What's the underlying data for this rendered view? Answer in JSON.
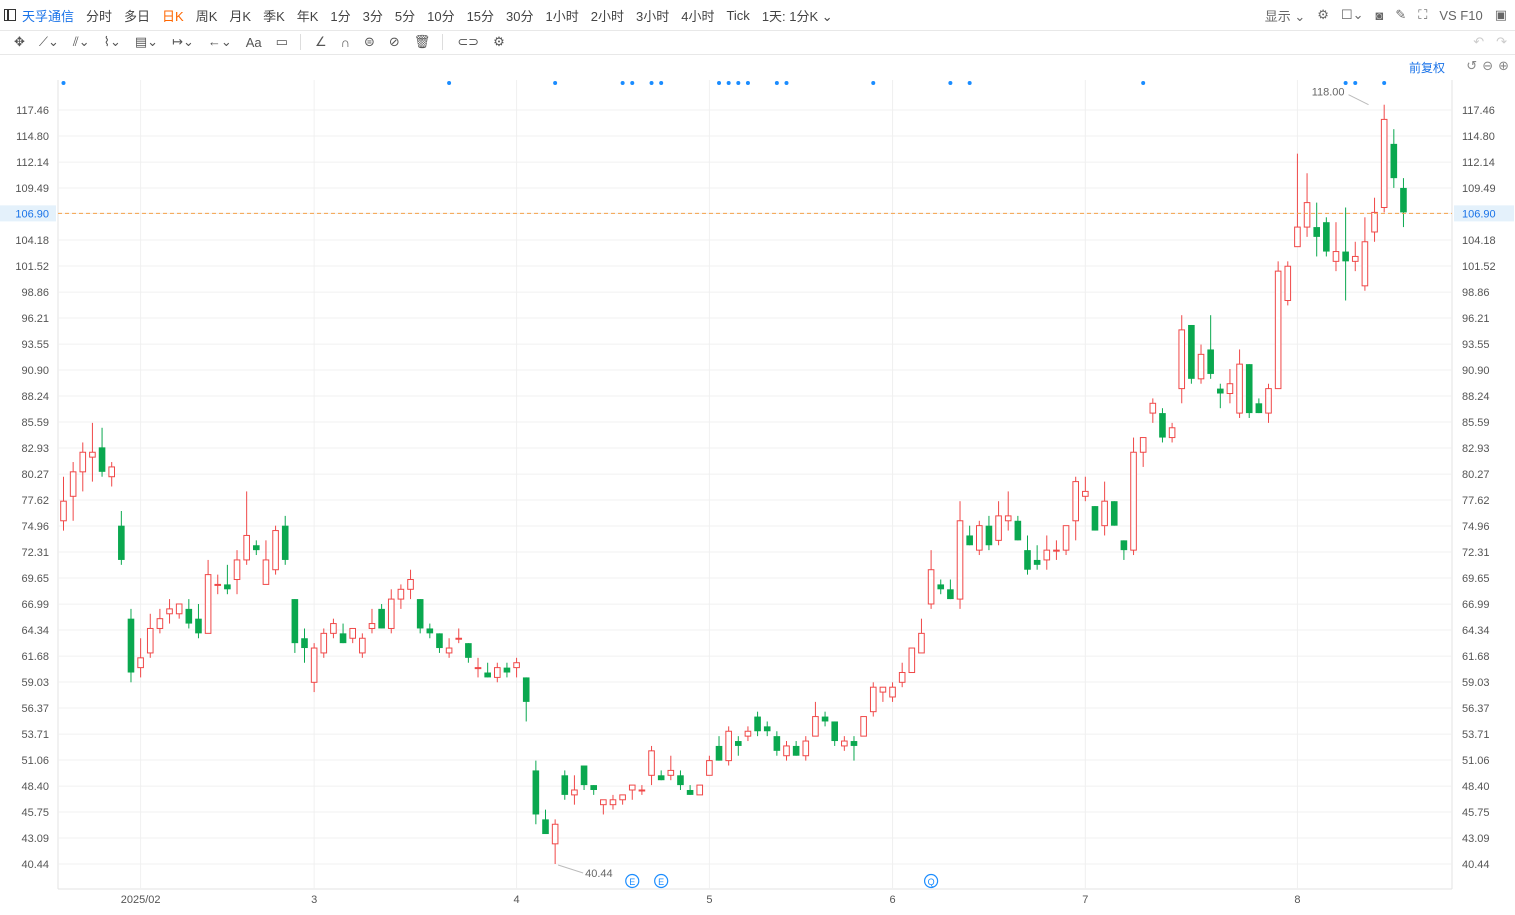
{
  "topbar": {
    "stock_name": "天孚通信",
    "periods": [
      "分时",
      "多日",
      "日K",
      "周K",
      "月K",
      "季K",
      "年K",
      "1分",
      "3分",
      "5分",
      "10分",
      "15分",
      "30分",
      "1小时",
      "2小时",
      "3小时",
      "4小时",
      "Tick",
      "1天: 1分K"
    ],
    "active_period": "日K",
    "display_label": "显示",
    "vs_label": "VS F10"
  },
  "toolbar2": {
    "text_tool_label": "Aa"
  },
  "adjust_label": "前复权",
  "colors": {
    "up": "#f04848",
    "down": "#0aa84f",
    "last_price_line": "#f5a14a",
    "marker": "#1a8cff"
  },
  "chart_data": {
    "type": "candlestick",
    "title": "",
    "ylim": [
      38.5,
      120.5
    ],
    "y_ticks": [
      "117.46",
      "114.80",
      "112.14",
      "109.49",
      "106.90",
      "104.18",
      "101.52",
      "98.86",
      "96.21",
      "93.55",
      "90.90",
      "88.24",
      "85.59",
      "82.93",
      "80.27",
      "77.62",
      "74.96",
      "72.31",
      "69.65",
      "66.99",
      "64.34",
      "61.68",
      "59.03",
      "56.37",
      "53.71",
      "51.06",
      "48.40",
      "45.75",
      "43.09",
      "40.44"
    ],
    "y_tick_values": [
      117.46,
      114.8,
      112.14,
      109.49,
      106.9,
      104.18,
      101.52,
      98.86,
      96.21,
      93.55,
      90.9,
      88.24,
      85.59,
      82.93,
      80.27,
      77.62,
      74.96,
      72.31,
      69.65,
      66.99,
      64.34,
      61.68,
      59.03,
      56.37,
      53.71,
      51.06,
      48.4,
      45.75,
      43.09,
      40.44
    ],
    "x_labels": [
      {
        "label": "2025/02",
        "index": 8
      },
      {
        "label": "3",
        "index": 26
      },
      {
        "label": "4",
        "index": 47
      },
      {
        "label": "5",
        "index": 67
      },
      {
        "label": "6",
        "index": 86
      },
      {
        "label": "7",
        "index": 106
      },
      {
        "label": "8",
        "index": 128
      }
    ],
    "last_price": 106.9,
    "last_price_label": "106.90",
    "max_label": "118.00",
    "max_index": 136,
    "max_value": 118.0,
    "min_label": "40.44",
    "min_index": 51,
    "min_value": 40.44,
    "event_markers": [
      {
        "label": "E",
        "index": 59
      },
      {
        "label": "E",
        "index": 62
      },
      {
        "label": "Q",
        "index": 90
      }
    ],
    "top_dot_indices": [
      0,
      40,
      51,
      58,
      59,
      61,
      62,
      68,
      69,
      70,
      71,
      74,
      75,
      84,
      92,
      94,
      112,
      133,
      134,
      137
    ],
    "candles": [
      {
        "o": 75.5,
        "h": 80.0,
        "l": 74.5,
        "c": 77.5
      },
      {
        "o": 78.0,
        "h": 81.5,
        "l": 75.5,
        "c": 80.5
      },
      {
        "o": 80.5,
        "h": 83.5,
        "l": 78.5,
        "c": 82.5
      },
      {
        "o": 82.0,
        "h": 85.5,
        "l": 79.5,
        "c": 82.5
      },
      {
        "o": 83.0,
        "h": 85.0,
        "l": 80.0,
        "c": 80.5
      },
      {
        "o": 80.0,
        "h": 81.5,
        "l": 79.0,
        "c": 81.0
      },
      {
        "o": 75.0,
        "h": 76.5,
        "l": 71.0,
        "c": 71.5
      },
      {
        "o": 65.5,
        "h": 66.5,
        "l": 59.0,
        "c": 60.0
      },
      {
        "o": 60.5,
        "h": 63.5,
        "l": 59.5,
        "c": 61.5
      },
      {
        "o": 62.0,
        "h": 66.0,
        "l": 61.5,
        "c": 64.5
      },
      {
        "o": 64.5,
        "h": 66.5,
        "l": 64.0,
        "c": 65.5
      },
      {
        "o": 66.0,
        "h": 67.5,
        "l": 65.0,
        "c": 66.5
      },
      {
        "o": 66.0,
        "h": 67.0,
        "l": 65.5,
        "c": 67.0
      },
      {
        "o": 66.5,
        "h": 67.5,
        "l": 64.5,
        "c": 65.0
      },
      {
        "o": 65.5,
        "h": 67.0,
        "l": 63.5,
        "c": 64.0
      },
      {
        "o": 64.0,
        "h": 71.5,
        "l": 64.0,
        "c": 70.0
      },
      {
        "o": 69.0,
        "h": 70.0,
        "l": 68.0,
        "c": 69.0
      },
      {
        "o": 69.0,
        "h": 71.0,
        "l": 68.0,
        "c": 68.5
      },
      {
        "o": 69.5,
        "h": 72.5,
        "l": 68.0,
        "c": 71.5
      },
      {
        "o": 71.5,
        "h": 78.5,
        "l": 71.0,
        "c": 74.0
      },
      {
        "o": 73.0,
        "h": 73.5,
        "l": 72.0,
        "c": 72.5
      },
      {
        "o": 69.0,
        "h": 73.5,
        "l": 69.0,
        "c": 71.5
      },
      {
        "o": 70.5,
        "h": 75.0,
        "l": 70.0,
        "c": 74.5
      },
      {
        "o": 75.0,
        "h": 76.0,
        "l": 71.0,
        "c": 71.5
      },
      {
        "o": 67.5,
        "h": 67.5,
        "l": 62.0,
        "c": 63.0
      },
      {
        "o": 63.5,
        "h": 64.5,
        "l": 61.0,
        "c": 62.5
      },
      {
        "o": 59.0,
        "h": 63.0,
        "l": 58.0,
        "c": 62.5
      },
      {
        "o": 62.0,
        "h": 64.5,
        "l": 61.5,
        "c": 64.0
      },
      {
        "o": 64.0,
        "h": 65.5,
        "l": 63.5,
        "c": 65.0
      },
      {
        "o": 64.0,
        "h": 65.0,
        "l": 63.0,
        "c": 63.0
      },
      {
        "o": 63.5,
        "h": 64.5,
        "l": 63.0,
        "c": 64.5
      },
      {
        "o": 62.0,
        "h": 64.0,
        "l": 61.5,
        "c": 63.5
      },
      {
        "o": 64.5,
        "h": 66.5,
        "l": 64.0,
        "c": 65.0
      },
      {
        "o": 66.5,
        "h": 67.0,
        "l": 64.5,
        "c": 64.5
      },
      {
        "o": 64.5,
        "h": 68.5,
        "l": 64.0,
        "c": 67.5
      },
      {
        "o": 67.5,
        "h": 69.0,
        "l": 66.5,
        "c": 68.5
      },
      {
        "o": 68.5,
        "h": 70.5,
        "l": 67.5,
        "c": 69.5
      },
      {
        "o": 67.5,
        "h": 67.5,
        "l": 64.0,
        "c": 64.5
      },
      {
        "o": 64.5,
        "h": 65.0,
        "l": 63.5,
        "c": 64.0
      },
      {
        "o": 64.0,
        "h": 64.0,
        "l": 62.0,
        "c": 62.5
      },
      {
        "o": 62.0,
        "h": 63.5,
        "l": 61.5,
        "c": 62.5
      },
      {
        "o": 63.5,
        "h": 64.5,
        "l": 63.0,
        "c": 63.5
      },
      {
        "o": 63.0,
        "h": 63.0,
        "l": 61.0,
        "c": 61.5
      },
      {
        "o": 60.5,
        "h": 61.5,
        "l": 59.5,
        "c": 60.5
      },
      {
        "o": 60.0,
        "h": 61.0,
        "l": 59.5,
        "c": 59.5
      },
      {
        "o": 59.5,
        "h": 61.0,
        "l": 59.0,
        "c": 60.5
      },
      {
        "o": 60.5,
        "h": 61.0,
        "l": 59.5,
        "c": 60.0
      },
      {
        "o": 60.5,
        "h": 61.5,
        "l": 59.5,
        "c": 61.0
      },
      {
        "o": 59.5,
        "h": 59.5,
        "l": 55.0,
        "c": 57.0
      },
      {
        "o": 50.0,
        "h": 51.0,
        "l": 44.5,
        "c": 45.5
      },
      {
        "o": 45.0,
        "h": 46.0,
        "l": 43.5,
        "c": 43.5
      },
      {
        "o": 42.5,
        "h": 45.0,
        "l": 40.44,
        "c": 44.5
      },
      {
        "o": 49.5,
        "h": 50.0,
        "l": 47.0,
        "c": 47.5
      },
      {
        "o": 47.5,
        "h": 49.5,
        "l": 46.5,
        "c": 48.0
      },
      {
        "o": 50.5,
        "h": 50.5,
        "l": 48.0,
        "c": 48.5
      },
      {
        "o": 48.5,
        "h": 48.5,
        "l": 47.5,
        "c": 48.0
      },
      {
        "o": 46.5,
        "h": 47.0,
        "l": 45.5,
        "c": 47.0
      },
      {
        "o": 46.5,
        "h": 47.5,
        "l": 46.0,
        "c": 47.0
      },
      {
        "o": 47.0,
        "h": 47.5,
        "l": 46.5,
        "c": 47.5
      },
      {
        "o": 48.0,
        "h": 48.5,
        "l": 47.0,
        "c": 48.5
      },
      {
        "o": 48.0,
        "h": 48.5,
        "l": 47.5,
        "c": 48.0
      },
      {
        "o": 49.5,
        "h": 52.5,
        "l": 48.5,
        "c": 52.0
      },
      {
        "o": 49.5,
        "h": 50.0,
        "l": 49.0,
        "c": 49.0
      },
      {
        "o": 49.5,
        "h": 51.5,
        "l": 49.0,
        "c": 50.0
      },
      {
        "o": 49.5,
        "h": 50.0,
        "l": 48.0,
        "c": 48.5
      },
      {
        "o": 48.0,
        "h": 48.5,
        "l": 47.5,
        "c": 47.5
      },
      {
        "o": 47.5,
        "h": 48.5,
        "l": 47.5,
        "c": 48.5
      },
      {
        "o": 49.5,
        "h": 51.5,
        "l": 49.5,
        "c": 51.0
      },
      {
        "o": 52.5,
        "h": 53.5,
        "l": 51.0,
        "c": 51.0
      },
      {
        "o": 51.0,
        "h": 54.5,
        "l": 50.5,
        "c": 54.0
      },
      {
        "o": 53.0,
        "h": 53.5,
        "l": 51.5,
        "c": 52.5
      },
      {
        "o": 53.5,
        "h": 54.5,
        "l": 53.0,
        "c": 54.0
      },
      {
        "o": 55.5,
        "h": 56.0,
        "l": 53.5,
        "c": 54.0
      },
      {
        "o": 54.5,
        "h": 55.0,
        "l": 53.5,
        "c": 54.0
      },
      {
        "o": 53.5,
        "h": 54.0,
        "l": 51.5,
        "c": 52.0
      },
      {
        "o": 51.5,
        "h": 53.0,
        "l": 51.0,
        "c": 52.5
      },
      {
        "o": 52.5,
        "h": 53.0,
        "l": 51.5,
        "c": 51.5
      },
      {
        "o": 51.5,
        "h": 53.5,
        "l": 51.0,
        "c": 53.0
      },
      {
        "o": 53.5,
        "h": 57.0,
        "l": 53.5,
        "c": 55.5
      },
      {
        "o": 55.5,
        "h": 56.0,
        "l": 54.5,
        "c": 55.0
      },
      {
        "o": 55.0,
        "h": 55.0,
        "l": 52.5,
        "c": 53.0
      },
      {
        "o": 52.5,
        "h": 53.5,
        "l": 52.0,
        "c": 53.0
      },
      {
        "o": 53.0,
        "h": 53.5,
        "l": 51.0,
        "c": 52.5
      },
      {
        "o": 53.5,
        "h": 55.5,
        "l": 53.5,
        "c": 55.5
      },
      {
        "o": 56.0,
        "h": 59.0,
        "l": 55.5,
        "c": 58.5
      },
      {
        "o": 58.0,
        "h": 58.5,
        "l": 57.0,
        "c": 58.5
      },
      {
        "o": 57.5,
        "h": 59.0,
        "l": 57.0,
        "c": 58.5
      },
      {
        "o": 59.0,
        "h": 61.0,
        "l": 58.5,
        "c": 60.0
      },
      {
        "o": 60.0,
        "h": 62.5,
        "l": 60.0,
        "c": 62.5
      },
      {
        "o": 62.0,
        "h": 65.5,
        "l": 62.0,
        "c": 64.0
      },
      {
        "o": 67.0,
        "h": 72.5,
        "l": 66.5,
        "c": 70.5
      },
      {
        "o": 69.0,
        "h": 69.5,
        "l": 68.0,
        "c": 68.5
      },
      {
        "o": 68.5,
        "h": 69.5,
        "l": 67.5,
        "c": 67.5
      },
      {
        "o": 67.5,
        "h": 77.5,
        "l": 66.5,
        "c": 75.5
      },
      {
        "o": 74.0,
        "h": 75.0,
        "l": 73.0,
        "c": 73.0
      },
      {
        "o": 72.5,
        "h": 75.5,
        "l": 72.0,
        "c": 75.0
      },
      {
        "o": 75.0,
        "h": 76.0,
        "l": 72.5,
        "c": 73.0
      },
      {
        "o": 73.5,
        "h": 77.5,
        "l": 73.0,
        "c": 76.0
      },
      {
        "o": 75.5,
        "h": 78.5,
        "l": 74.5,
        "c": 76.0
      },
      {
        "o": 75.5,
        "h": 76.0,
        "l": 73.5,
        "c": 73.5
      },
      {
        "o": 72.5,
        "h": 74.0,
        "l": 70.0,
        "c": 70.5
      },
      {
        "o": 71.5,
        "h": 73.0,
        "l": 70.5,
        "c": 71.0
      },
      {
        "o": 71.5,
        "h": 74.0,
        "l": 70.5,
        "c": 72.5
      },
      {
        "o": 72.5,
        "h": 73.5,
        "l": 71.5,
        "c": 72.5
      },
      {
        "o": 72.5,
        "h": 75.0,
        "l": 72.0,
        "c": 75.0
      },
      {
        "o": 75.5,
        "h": 80.0,
        "l": 73.5,
        "c": 79.5
      },
      {
        "o": 78.0,
        "h": 80.0,
        "l": 77.5,
        "c": 78.5
      },
      {
        "o": 77.0,
        "h": 77.0,
        "l": 74.5,
        "c": 74.5
      },
      {
        "o": 75.0,
        "h": 79.5,
        "l": 74.0,
        "c": 77.5
      },
      {
        "o": 77.5,
        "h": 77.5,
        "l": 75.0,
        "c": 75.0
      },
      {
        "o": 73.5,
        "h": 73.5,
        "l": 71.5,
        "c": 72.5
      },
      {
        "o": 72.5,
        "h": 84.0,
        "l": 72.0,
        "c": 82.5
      },
      {
        "o": 82.5,
        "h": 84.0,
        "l": 81.0,
        "c": 84.0
      },
      {
        "o": 86.5,
        "h": 88.0,
        "l": 85.5,
        "c": 87.5
      },
      {
        "o": 86.5,
        "h": 87.0,
        "l": 83.5,
        "c": 84.0
      },
      {
        "o": 84.0,
        "h": 85.5,
        "l": 83.5,
        "c": 85.0
      },
      {
        "o": 89.0,
        "h": 96.5,
        "l": 87.5,
        "c": 95.0
      },
      {
        "o": 95.5,
        "h": 95.5,
        "l": 89.5,
        "c": 90.0
      },
      {
        "o": 90.0,
        "h": 93.5,
        "l": 89.5,
        "c": 92.5
      },
      {
        "o": 93.0,
        "h": 96.5,
        "l": 90.0,
        "c": 90.5
      },
      {
        "o": 89.0,
        "h": 89.5,
        "l": 87.0,
        "c": 88.5
      },
      {
        "o": 88.5,
        "h": 91.0,
        "l": 87.5,
        "c": 89.5
      },
      {
        "o": 86.5,
        "h": 93.0,
        "l": 86.0,
        "c": 91.5
      },
      {
        "o": 91.5,
        "h": 91.5,
        "l": 86.0,
        "c": 86.5
      },
      {
        "o": 87.5,
        "h": 88.0,
        "l": 86.5,
        "c": 86.5
      },
      {
        "o": 86.5,
        "h": 89.5,
        "l": 85.5,
        "c": 89.0
      },
      {
        "o": 89.0,
        "h": 102.0,
        "l": 89.0,
        "c": 101.0
      },
      {
        "o": 98.0,
        "h": 102.0,
        "l": 97.5,
        "c": 101.5
      },
      {
        "o": 103.5,
        "h": 113.0,
        "l": 103.5,
        "c": 105.5
      },
      {
        "o": 105.5,
        "h": 111.0,
        "l": 104.5,
        "c": 108.0
      },
      {
        "o": 105.5,
        "h": 108.0,
        "l": 102.5,
        "c": 104.5
      },
      {
        "o": 106.0,
        "h": 106.5,
        "l": 102.5,
        "c": 103.0
      },
      {
        "o": 102.0,
        "h": 106.0,
        "l": 101.0,
        "c": 103.0
      },
      {
        "o": 103.0,
        "h": 107.5,
        "l": 98.0,
        "c": 102.0
      },
      {
        "o": 102.0,
        "h": 104.0,
        "l": 101.0,
        "c": 102.5
      },
      {
        "o": 99.5,
        "h": 106.5,
        "l": 99.0,
        "c": 104.0
      },
      {
        "o": 105.0,
        "h": 108.5,
        "l": 104.0,
        "c": 107.0
      },
      {
        "o": 107.5,
        "h": 118.0,
        "l": 107.0,
        "c": 116.5
      },
      {
        "o": 114.0,
        "h": 115.5,
        "l": 109.5,
        "c": 110.5
      },
      {
        "o": 109.5,
        "h": 110.5,
        "l": 105.5,
        "c": 107.0
      }
    ]
  }
}
